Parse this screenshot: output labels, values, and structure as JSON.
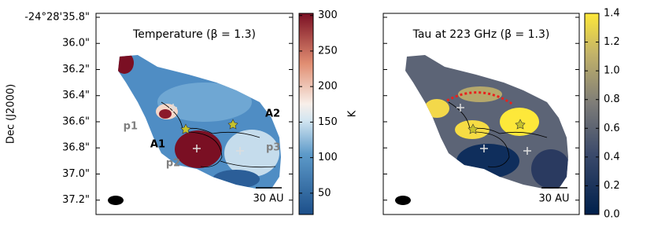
{
  "chart_data": [
    {
      "type": "image",
      "title": "Temperature (β = 1.3)",
      "ylabel": "Dec (J2000)",
      "ylim": [
        35.77,
        37.31
      ],
      "yticks": [
        {
          "value": 35.8,
          "label": "-24°28'35.8\""
        },
        {
          "value": 36.0,
          "label": "36.0\""
        },
        {
          "value": 36.2,
          "label": "36.2\""
        },
        {
          "value": 36.4,
          "label": "36.4\""
        },
        {
          "value": 36.6,
          "label": "36.6\""
        },
        {
          "value": 36.8,
          "label": "36.8\""
        },
        {
          "value": 37.0,
          "label": "37.0\""
        },
        {
          "value": 37.2,
          "label": "37.2\""
        }
      ],
      "colorbar": {
        "label": "K",
        "lim": [
          20,
          303
        ],
        "ticks": [
          50,
          100,
          150,
          200,
          250,
          300
        ]
      },
      "annotations": [
        "A2",
        "A1",
        "p1",
        "p2",
        "p3",
        "30 AU"
      ]
    },
    {
      "type": "image",
      "title": "Tau at 223 GHz (β = 1.3)",
      "ylim": [
        35.77,
        37.31
      ],
      "yticks": [
        35.8,
        36.0,
        36.2,
        36.4,
        36.6,
        36.8,
        37.0,
        37.2
      ],
      "colorbar": {
        "lim": [
          0,
          1.4
        ],
        "ticks": [
          {
            "value": 0,
            "label": "0.0"
          },
          0.2,
          0.4,
          0.6,
          0.8,
          {
            "value": 1,
            "label": "1.0"
          },
          1.2,
          1.4
        ]
      },
      "annotations": [
        "30 AU"
      ]
    }
  ]
}
